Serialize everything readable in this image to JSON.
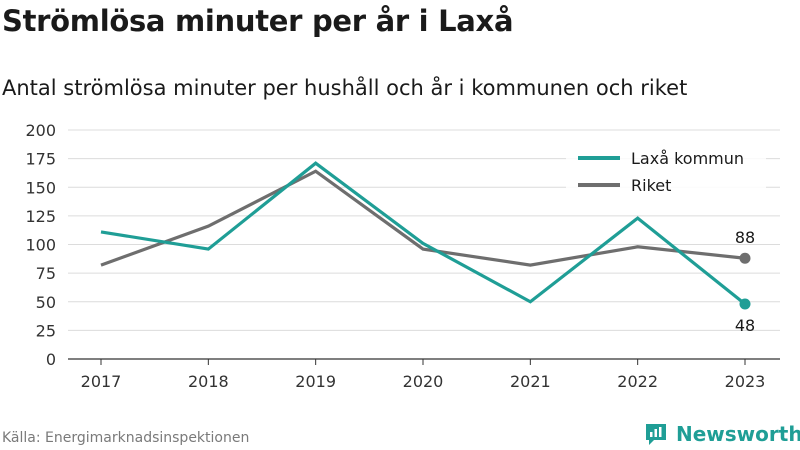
{
  "title": "Strömlösa minuter per år i Laxå",
  "subtitle": "Antal strömlösa minuter per hushåll och år i kommunen och riket",
  "source": "Källa: Energimarknadsinspektionen",
  "brand": {
    "name": "Newsworthy",
    "icon": "newsworthy-logo-icon",
    "color": "#1f9e96"
  },
  "chart_data": {
    "type": "line",
    "x": [
      "2017",
      "2018",
      "2019",
      "2020",
      "2021",
      "2022",
      "2023"
    ],
    "ylim": [
      0,
      200
    ],
    "yticks": [
      "0",
      "25",
      "50",
      "75",
      "100",
      "125",
      "150",
      "175",
      "200"
    ],
    "grid": true,
    "legend": "top-right",
    "series": [
      {
        "name": "Laxå kommun",
        "color": "#1f9e96",
        "values": [
          111,
          96,
          171,
          101,
          50,
          123,
          48
        ],
        "end_label": "48"
      },
      {
        "name": "Riket",
        "color": "#6e6e6e",
        "values": [
          82,
          116,
          164,
          96,
          82,
          98,
          88
        ],
        "end_label": "88"
      }
    ]
  }
}
